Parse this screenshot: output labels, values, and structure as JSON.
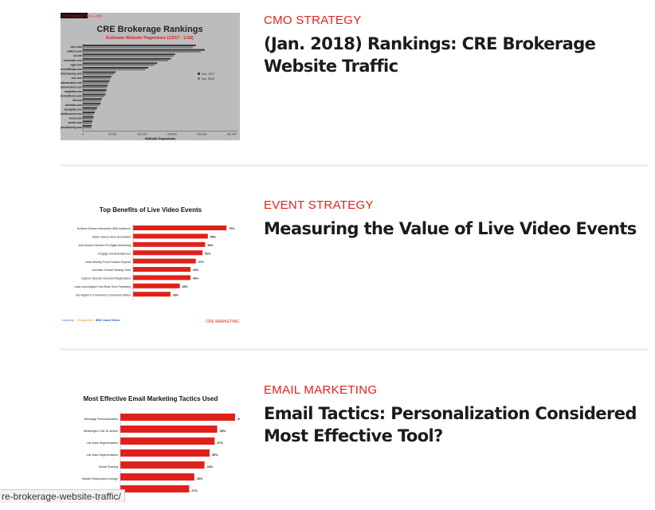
{
  "posts": [
    {
      "category": "CMO STRATEGY",
      "title": "(Jan. 2018) Rankings: CRE Brokerage Website Traffic",
      "thumbnail": {
        "tag": "CRE MARKETING LABS",
        "chart_data": {
          "type": "bar",
          "title": "CRE Brokerage Rankings",
          "subtitle": "Estimate Website Pageviews (12/17 - 1/18)",
          "xlabel": "Website Pageviews",
          "ylabel": "",
          "categories": [
            "cbre.com",
            "colliers.com",
            "jll.com",
            "cushwake.com",
            "ngkf.com",
            "marcusmillichap.com",
            "avisonyoung.com",
            "svn.com",
            "leeassociates.com",
            "transwestern.com",
            "naiglobal.com",
            "kiddermathews.com",
            "hff.com",
            "berkadia.com",
            "naicapital.com",
            "eastdilsecured.com",
            "cresa.com",
            "savills.com",
            "jrmultifamily.com"
          ],
          "series": [
            {
              "name": "Dec. 2017",
              "values": [
                190000,
                205000,
                155000,
                148000,
                125000,
                110000,
                55000,
                48000,
                45000,
                42000,
                40000,
                38000,
                32000,
                30000,
                24000,
                20000,
                18000,
                16000,
                15000
              ]
            },
            {
              "name": "Jan. 2018",
              "values": [
                185000,
                198000,
                152000,
                143000,
                120000,
                105000,
                52000,
                46000,
                43000,
                40000,
                38000,
                36000,
                30000,
                28000,
                22000,
                18000,
                17000,
                15000,
                14000
              ]
            }
          ],
          "xticks": [
            "0",
            "50,000",
            "100,000",
            "150,000",
            "200,000",
            "250,000"
          ],
          "xlim": [
            0,
            260000
          ],
          "legend": "right",
          "colors": {
            "Dec. 2017": "#3a3a3a",
            "Jan. 2018": "#7a7a7a"
          }
        }
      }
    },
    {
      "category": "EVENT STRATEGY",
      "title": "Measuring the Value of Live Video Events",
      "thumbnail": {
        "brand": "CRE MARKETING",
        "footer_logos": [
          "marketing",
          "ParagonSite",
          "IBM Cloud Video"
        ],
        "chart_data": {
          "type": "bar",
          "title": "Top Benefits of Live Video Events",
          "categories": [
            "Achieve Deeper Interaction With Audience",
            "Make Videos More Accessible",
            "Add Human Element To Digital Marketing",
            "Engage Social Audiences",
            "Hear Directly From Product Experts",
            "Increase Overall Viewing Time",
            "Capture Results Via Event Registration",
            "Learn and Adjust From Real-Time Feedback",
            "Get Higher E-Commerce Conversion Rates"
          ],
          "values": [
            70,
            56,
            54,
            52,
            47,
            43,
            43,
            35,
            28
          ],
          "value_suffix": "%",
          "xlim": [
            0,
            80
          ],
          "color": "#e0211b"
        }
      }
    },
    {
      "category": "EMAIL MARKETING",
      "title": "Email Tactics: Personalization Considered Most Effective Tool?",
      "thumbnail": {
        "chart_data": {
          "type": "bar",
          "title": "Most Effective Email Marketing Tactics Used",
          "categories": [
            "Message Personalization",
            "Meaningful Call-To-Action",
            "List Data Segmentation",
            "List Data Segmentation",
            "Social Sharing",
            "Mobile Responsive Design",
            "Triggered Emails"
          ],
          "values": [
            45,
            38,
            37,
            35,
            33,
            29,
            27
          ],
          "value_suffix": "%",
          "xlim": [
            0,
            50
          ],
          "color": "#e0211b"
        }
      }
    }
  ],
  "status_bar": {
    "url": "re-brokerage-website-traffic/"
  }
}
